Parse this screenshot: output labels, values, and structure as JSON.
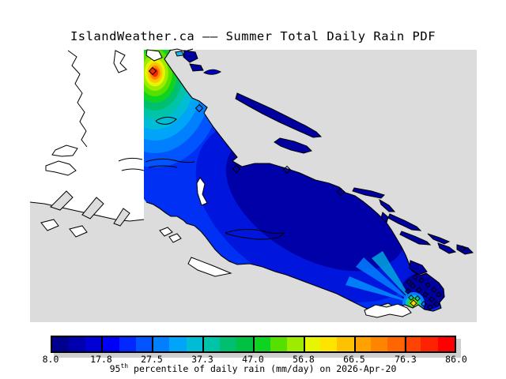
{
  "title": "IslandWeather.ca —— Summer Total Daily Rain PDF",
  "colorbar": {
    "tick_labels": [
      "8.0",
      "17.8",
      "27.5",
      "37.3",
      "47.0",
      "56.8",
      "66.5",
      "76.3",
      "86.0"
    ],
    "caption_num": "95",
    "caption_sup": "th",
    "caption_rest": " percentile of daily rain (mm/day) on 2026-Apr-20",
    "min": 8.0,
    "max": 86.0,
    "segment_colors": [
      "#00008e",
      "#0000b0",
      "#0000d6",
      "#0000fa",
      "#0028ff",
      "#0055ff",
      "#0080ff",
      "#00a4f8",
      "#00bcd4",
      "#00c4a8",
      "#00c070",
      "#00c141",
      "#0ed321",
      "#55e000",
      "#9eeb00",
      "#e8f500",
      "#ffe400",
      "#ffc200",
      "#ffa200",
      "#ff8400",
      "#ff6500",
      "#ff4300",
      "#ff2200",
      "#ff0000"
    ]
  },
  "map": {
    "panel_color": "#dcdcdc",
    "no_data_land_color": "#ffffff",
    "coastline_color": "#000000",
    "max_marker_color": "#f22b00",
    "secondary_marker_color": "#ffd800"
  },
  "chart_data": {
    "type": "heatmap",
    "subtype": "filled-contour geographic map",
    "title": "IslandWeather.ca —— Summer Total Daily Rain PDF",
    "region": "Vancouver Island and surrounding islands",
    "variable": "95th percentile of daily rain",
    "units": "mm/day",
    "date": "2026-Apr-20",
    "colorbar_ticks": [
      8.0,
      17.8,
      27.5,
      37.3,
      47.0,
      56.8,
      66.5,
      76.3,
      86.0
    ],
    "colorbar_range": [
      8.0,
      86.0
    ],
    "colorbar_segments": 24,
    "legend_position": "bottom horizontal colorbar",
    "field_summary": {
      "island_background_value_range": [
        8,
        20
      ],
      "primary_maximum": {
        "location": "northwest coast of data region",
        "approx_value": 86,
        "marker": "red diamond"
      },
      "secondary_maximum": {
        "location": "southeast tip near Victoria",
        "approx_value": 60,
        "marker": "yellow diamond"
      },
      "station_markers": "small open black diamonds, dense cluster at the southeast tip",
      "no_data_land": "white with black coastlines (west of clipped data boundary)",
      "ocean_background": "light gray"
    }
  }
}
